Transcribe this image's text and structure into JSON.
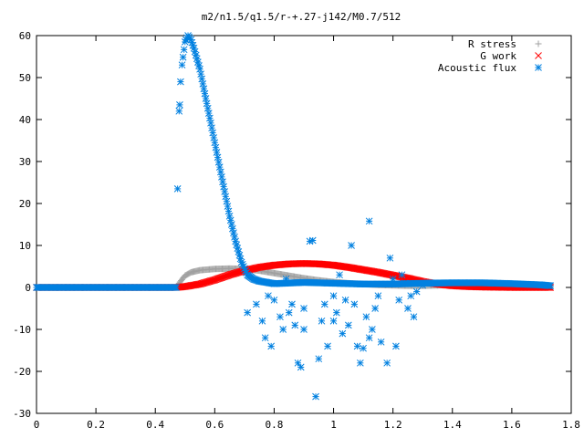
{
  "chart_data": {
    "type": "scatter",
    "title": "m2/n1.5/q1.5/r-+.27-j142/M0.7/512",
    "xlabel": "",
    "ylabel": "",
    "xlim": [
      0,
      1.8
    ],
    "ylim": [
      -30,
      60
    ],
    "x_ticks": [
      "0",
      "0.2",
      "0.4",
      "0.6",
      "0.8",
      "1",
      "1.2",
      "1.4",
      "1.6",
      "1.8"
    ],
    "y_ticks": [
      "-30",
      "-20",
      "-10",
      "0",
      "10",
      "20",
      "30",
      "40",
      "50",
      "60"
    ],
    "grid": false,
    "legend_position": "top-right",
    "series": [
      {
        "name": "R stress",
        "marker": "plus",
        "color": "#a0a0a0",
        "points": [
          [
            0.0,
            0.0
          ],
          [
            0.1,
            0.0
          ],
          [
            0.2,
            0.0
          ],
          [
            0.3,
            0.0
          ],
          [
            0.4,
            0.0
          ],
          [
            0.47,
            0.0
          ],
          [
            0.48,
            1.0
          ],
          [
            0.5,
            2.8
          ],
          [
            0.52,
            3.6
          ],
          [
            0.55,
            4.1
          ],
          [
            0.6,
            4.4
          ],
          [
            0.65,
            4.5
          ],
          [
            0.7,
            4.4
          ],
          [
            0.75,
            4.0
          ],
          [
            0.8,
            3.4
          ],
          [
            0.85,
            2.8
          ],
          [
            0.9,
            2.2
          ],
          [
            0.95,
            1.7
          ],
          [
            1.0,
            1.3
          ],
          [
            1.05,
            1.0
          ],
          [
            1.1,
            0.8
          ],
          [
            1.15,
            0.6
          ],
          [
            1.2,
            0.5
          ],
          [
            1.25,
            0.4
          ],
          [
            1.3,
            0.4
          ],
          [
            1.35,
            0.5
          ],
          [
            1.4,
            0.7
          ],
          [
            1.45,
            0.8
          ],
          [
            1.5,
            0.8
          ],
          [
            1.55,
            0.7
          ],
          [
            1.6,
            0.6
          ],
          [
            1.65,
            0.4
          ],
          [
            1.7,
            0.2
          ],
          [
            1.73,
            0.1
          ]
        ]
      },
      {
        "name": "G work",
        "marker": "cross",
        "color": "#ff0000",
        "points": [
          [
            0.0,
            0.0
          ],
          [
            0.1,
            0.0
          ],
          [
            0.2,
            0.0
          ],
          [
            0.3,
            0.0
          ],
          [
            0.4,
            0.0
          ],
          [
            0.47,
            0.0
          ],
          [
            0.5,
            0.2
          ],
          [
            0.55,
            0.8
          ],
          [
            0.6,
            1.8
          ],
          [
            0.65,
            3.0
          ],
          [
            0.7,
            4.0
          ],
          [
            0.75,
            4.8
          ],
          [
            0.8,
            5.3
          ],
          [
            0.85,
            5.6
          ],
          [
            0.9,
            5.7
          ],
          [
            0.95,
            5.6
          ],
          [
            1.0,
            5.3
          ],
          [
            1.05,
            4.8
          ],
          [
            1.1,
            4.2
          ],
          [
            1.15,
            3.6
          ],
          [
            1.2,
            2.9
          ],
          [
            1.25,
            2.2
          ],
          [
            1.3,
            1.4
          ],
          [
            1.35,
            0.8
          ],
          [
            1.4,
            0.4
          ],
          [
            1.45,
            0.2
          ],
          [
            1.5,
            0.1
          ],
          [
            1.6,
            0.0
          ],
          [
            1.73,
            0.0
          ]
        ]
      },
      {
        "name": "Acoustic flux",
        "marker": "star",
        "color": "#0080e0",
        "points": [
          [
            0.0,
            0.0
          ],
          [
            0.1,
            0.0
          ],
          [
            0.2,
            0.0
          ],
          [
            0.3,
            0.0
          ],
          [
            0.4,
            0.0
          ],
          [
            0.47,
            0.0
          ],
          [
            0.475,
            23.5
          ],
          [
            0.48,
            42.0
          ],
          [
            0.482,
            43.5
          ],
          [
            0.485,
            49.0
          ],
          [
            0.49,
            53.0
          ],
          [
            0.5,
            58.5
          ],
          [
            0.51,
            60.0
          ],
          [
            0.52,
            59.0
          ],
          [
            0.53,
            57.0
          ],
          [
            0.55,
            52.0
          ],
          [
            0.57,
            45.0
          ],
          [
            0.59,
            38.0
          ],
          [
            0.61,
            31.0
          ],
          [
            0.63,
            24.0
          ],
          [
            0.65,
            17.0
          ],
          [
            0.67,
            11.0
          ],
          [
            0.69,
            6.0
          ],
          [
            0.71,
            3.0
          ],
          [
            0.73,
            2.0
          ],
          [
            0.75,
            1.5
          ],
          [
            0.8,
            0.9
          ],
          [
            0.9,
            1.2
          ],
          [
            1.0,
            1.0
          ],
          [
            1.1,
            0.8
          ],
          [
            1.2,
            0.8
          ],
          [
            1.3,
            1.0
          ],
          [
            1.4,
            1.1
          ],
          [
            1.5,
            1.1
          ],
          [
            1.6,
            0.9
          ],
          [
            1.7,
            0.6
          ],
          [
            1.73,
            0.4
          ],
          [
            0.71,
            -6.0
          ],
          [
            0.74,
            -4.0
          ],
          [
            0.76,
            -8.0
          ],
          [
            0.77,
            -12.0
          ],
          [
            0.79,
            -14.0
          ],
          [
            0.8,
            -3.0
          ],
          [
            0.82,
            -7.0
          ],
          [
            0.83,
            -10.0
          ],
          [
            0.85,
            -6.0
          ],
          [
            0.87,
            -9.0
          ],
          [
            0.88,
            -18.0
          ],
          [
            0.89,
            -19.0
          ],
          [
            0.9,
            -5.0
          ],
          [
            0.92,
            11.0
          ],
          [
            0.93,
            11.2
          ],
          [
            0.94,
            -26.0
          ],
          [
            0.95,
            -17.0
          ],
          [
            0.96,
            -8.0
          ],
          [
            0.98,
            -14.0
          ],
          [
            1.0,
            -2.0
          ],
          [
            1.01,
            -6.0
          ],
          [
            1.03,
            -11.0
          ],
          [
            1.05,
            -9.0
          ],
          [
            1.06,
            10.0
          ],
          [
            1.07,
            -4.0
          ],
          [
            1.08,
            -14.0
          ],
          [
            1.09,
            -18.0
          ],
          [
            1.1,
            -14.5
          ],
          [
            1.11,
            -7.0
          ],
          [
            1.12,
            15.8
          ],
          [
            1.13,
            -10.0
          ],
          [
            1.15,
            -2.0
          ],
          [
            1.16,
            -13.0
          ],
          [
            1.18,
            -18.0
          ],
          [
            1.19,
            7.0
          ],
          [
            1.21,
            -14.0
          ],
          [
            1.23,
            3.0
          ],
          [
            1.25,
            -5.0
          ],
          [
            1.27,
            -7.0
          ],
          [
            1.28,
            -1.0
          ],
          [
            1.3,
            0.5
          ],
          [
            0.78,
            -2.0
          ],
          [
            0.84,
            2.0
          ],
          [
            0.86,
            -4.0
          ],
          [
            0.9,
            -10.0
          ],
          [
            0.97,
            -4.0
          ],
          [
            1.0,
            -8.0
          ],
          [
            1.02,
            3.0
          ],
          [
            1.04,
            -3.0
          ],
          [
            1.12,
            -12.0
          ],
          [
            1.14,
            -5.0
          ],
          [
            1.2,
            2.0
          ],
          [
            1.22,
            -3.0
          ],
          [
            1.24,
            1.0
          ],
          [
            1.26,
            -2.0
          ]
        ]
      }
    ]
  }
}
